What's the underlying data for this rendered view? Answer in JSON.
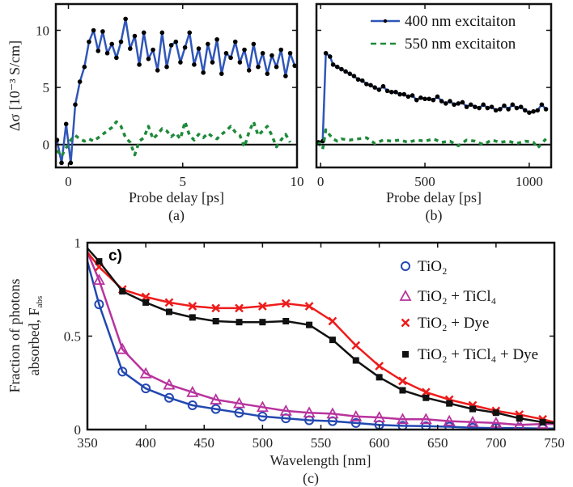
{
  "chart_data": [
    {
      "panel_label": "(a)",
      "type": "line",
      "xlabel": "Probe delay [ps]",
      "ylabel": "Δσ [10⁻³ S/cm]",
      "xlim": [
        -0.55,
        10
      ],
      "ylim": [
        -2.0,
        12.3
      ],
      "xticks": [
        0,
        5,
        10
      ],
      "yticks": [
        0,
        5,
        10
      ],
      "zero_line": true,
      "series": [
        {
          "color": "#2f56b8",
          "marker_color": "#000000",
          "style": "solid-dots",
          "x": [
            -0.5,
            -0.3,
            -0.1,
            0.1,
            0.3,
            0.5,
            0.7,
            0.9,
            1.1,
            1.3,
            1.5,
            1.7,
            1.9,
            2.1,
            2.3,
            2.5,
            2.7,
            2.9,
            3.1,
            3.3,
            3.5,
            3.7,
            3.9,
            4.1,
            4.3,
            4.5,
            4.7,
            4.9,
            5.1,
            5.3,
            5.5,
            5.7,
            5.9,
            6.1,
            6.3,
            6.5,
            6.7,
            6.9,
            7.1,
            7.3,
            7.5,
            7.7,
            7.9,
            8.1,
            8.3,
            8.5,
            8.7,
            8.9,
            9.1,
            9.3,
            9.5,
            9.7,
            9.9
          ],
          "y": [
            0.4,
            -1.6,
            1.8,
            -1.6,
            3.5,
            5.5,
            6.8,
            9.0,
            10.0,
            8.2,
            9.9,
            8.0,
            8.8,
            7.6,
            9.0,
            11.0,
            8.4,
            9.5,
            7.0,
            9.8,
            7.5,
            8.3,
            6.5,
            9.8,
            6.8,
            8.7,
            9.0,
            7.2,
            8.5,
            9.8,
            7.0,
            8.4,
            6.3,
            8.8,
            7.2,
            9.2,
            6.2,
            8.0,
            7.6,
            9.0,
            7.2,
            8.3,
            6.5,
            8.8,
            6.8,
            8.0,
            6.2,
            7.8,
            6.8,
            8.3,
            6.0,
            8.0,
            6.9
          ]
        },
        {
          "color": "#1e8a3a",
          "style": "dashed",
          "x": [
            -0.5,
            -0.3,
            -0.1,
            0.1,
            0.3,
            0.5,
            0.7,
            0.9,
            1.1,
            1.3,
            1.5,
            1.7,
            1.9,
            2.1,
            2.3,
            2.5,
            2.7,
            2.9,
            3.1,
            3.3,
            3.5,
            3.7,
            3.9,
            4.1,
            4.3,
            4.5,
            4.7,
            4.9,
            5.1,
            5.3,
            5.5,
            5.7,
            5.9,
            6.1,
            6.3,
            6.5,
            6.7,
            6.9,
            7.1,
            7.3,
            7.5,
            7.7,
            7.9,
            8.1,
            8.3,
            8.5,
            8.7,
            8.9,
            9.1,
            9.3,
            9.5,
            9.7
          ],
          "y": [
            -0.5,
            -1.0,
            -0.3,
            0.4,
            0.8,
            0.5,
            0.3,
            0.5,
            0.3,
            0.6,
            0.9,
            1.2,
            1.5,
            2.0,
            1.6,
            0.6,
            0.2,
            -0.9,
            0.3,
            0.6,
            1.6,
            0.5,
            0.9,
            1.4,
            1.2,
            0.7,
            1.0,
            0.5,
            2.0,
            0.8,
            0.4,
            0.9,
            0.6,
            1.0,
            0.7,
            0.5,
            0.9,
            1.2,
            1.6,
            1.1,
            0.8,
            -0.2,
            1.1,
            2.0,
            0.8,
            1.2,
            1.6,
            0.8,
            -0.2,
            0.4,
            0.9,
            0.2
          ]
        }
      ]
    },
    {
      "panel_label": "(b)",
      "type": "line",
      "xlabel": "Probe delay [ps]",
      "xlim": [
        -20,
        1105
      ],
      "ylim": [
        -2.0,
        12.3
      ],
      "xticks": [
        0,
        500,
        1000
      ],
      "yticks": [
        0,
        5,
        10
      ],
      "zero_line": true,
      "legend": {
        "position": "top-right",
        "entries": [
          "400 nm excitaiton",
          "550 nm excitaiton"
        ]
      },
      "series": [
        {
          "name": "400 nm excitaiton",
          "color": "#2f56b8",
          "marker_color": "#000000",
          "style": "solid-dots",
          "x": [
            -10,
            10,
            25,
            45,
            60,
            80,
            100,
            120,
            140,
            160,
            180,
            200,
            220,
            240,
            260,
            280,
            300,
            320,
            340,
            360,
            380,
            400,
            420,
            440,
            460,
            480,
            500,
            520,
            540,
            560,
            580,
            600,
            620,
            640,
            660,
            680,
            700,
            720,
            740,
            760,
            780,
            800,
            820,
            840,
            860,
            880,
            900,
            920,
            940,
            960,
            980,
            1000,
            1020,
            1040,
            1060,
            1080
          ],
          "y": [
            0.2,
            0.3,
            8.0,
            7.7,
            7.0,
            6.8,
            6.6,
            6.4,
            6.2,
            6.0,
            5.7,
            5.6,
            5.3,
            5.2,
            5.0,
            4.8,
            5.1,
            4.7,
            4.6,
            4.6,
            4.4,
            4.4,
            4.2,
            4.3,
            3.9,
            4.1,
            4.0,
            4.0,
            3.9,
            4.2,
            3.8,
            3.6,
            3.8,
            3.5,
            3.6,
            3.7,
            3.3,
            3.5,
            3.3,
            3.2,
            3.5,
            3.2,
            3.3,
            3.0,
            3.1,
            3.4,
            3.1,
            3.5,
            3.2,
            3.3,
            3.0,
            2.8,
            2.9,
            3.0,
            3.5,
            3.1
          ]
        },
        {
          "name": "550 nm excitaiton",
          "color": "#1e8a3a",
          "style": "dashed",
          "x": [
            -10,
            10,
            25,
            45,
            60,
            80,
            100,
            140,
            180,
            220,
            260,
            300,
            340,
            380,
            420,
            460,
            500,
            540,
            580,
            620,
            660,
            700,
            740,
            780,
            820,
            860,
            900,
            940,
            980,
            1020,
            1040,
            1080
          ],
          "y": [
            0.2,
            -0.4,
            1.3,
            0.8,
            0.5,
            0.3,
            0.5,
            0.4,
            0.5,
            0.6,
            0.1,
            0.4,
            0.3,
            0.4,
            0.2,
            0.4,
            0.3,
            0.5,
            0.2,
            0.3,
            -0.1,
            0.4,
            0.3,
            0.0,
            0.4,
            0.2,
            0.3,
            0.1,
            0.3,
            0.2,
            -0.3,
            0.5
          ]
        }
      ]
    },
    {
      "panel_label": "(c)",
      "inner_label": "c)",
      "type": "line",
      "xlabel": "Wavelength [nm]",
      "ylabel_lines": [
        "Fraction of photons",
        "absorbed, F"
      ],
      "ylabel_subscript": "abs",
      "xlim": [
        350,
        750
      ],
      "ylim": [
        0,
        1
      ],
      "xticks": [
        350,
        400,
        450,
        500,
        550,
        600,
        650,
        700,
        750
      ],
      "yticks": [
        0,
        0.5,
        1
      ],
      "ytick_labels": [
        "0",
        "0.5",
        "1"
      ],
      "legend": {
        "position": "right"
      },
      "series": [
        {
          "name": "TiO₂",
          "color": "#2348b0",
          "marker": "circle",
          "line_x": [
            350,
            360,
            380,
            400,
            420,
            440,
            460,
            480,
            500,
            520,
            540,
            560,
            580,
            600,
            620,
            640,
            660,
            680,
            700,
            720,
            740,
            750
          ],
          "line_y": [
            0.9,
            0.67,
            0.31,
            0.22,
            0.17,
            0.13,
            0.11,
            0.09,
            0.07,
            0.06,
            0.05,
            0.045,
            0.035,
            0.025,
            0.02,
            0.018,
            0.015,
            0.01,
            0.008,
            0.008,
            0.005,
            0.005
          ],
          "marker_x": [
            360,
            380,
            400,
            420,
            440,
            460,
            480,
            500,
            520,
            540,
            560,
            580,
            600,
            620,
            640,
            660,
            680,
            700,
            720,
            740
          ],
          "marker_y": [
            0.67,
            0.31,
            0.22,
            0.17,
            0.13,
            0.11,
            0.09,
            0.07,
            0.06,
            0.05,
            0.045,
            0.035,
            0.025,
            0.02,
            0.018,
            0.015,
            0.01,
            0.008,
            0.008,
            0.005
          ]
        },
        {
          "name": "TiO₂ + TiCl₄",
          "color": "#b8339e",
          "marker": "triangle",
          "line_x": [
            350,
            360,
            380,
            400,
            420,
            440,
            460,
            480,
            500,
            520,
            540,
            560,
            580,
            600,
            620,
            640,
            660,
            680,
            700,
            720,
            740,
            750
          ],
          "line_y": [
            0.95,
            0.8,
            0.43,
            0.3,
            0.24,
            0.2,
            0.16,
            0.14,
            0.12,
            0.1,
            0.09,
            0.085,
            0.07,
            0.065,
            0.055,
            0.055,
            0.045,
            0.04,
            0.035,
            0.025,
            0.03,
            0.03
          ],
          "marker_x": [
            360,
            380,
            400,
            420,
            440,
            460,
            480,
            500,
            520,
            540,
            560,
            580,
            600,
            620,
            640,
            660,
            680,
            700,
            720,
            740
          ],
          "marker_y": [
            0.8,
            0.43,
            0.3,
            0.24,
            0.2,
            0.16,
            0.14,
            0.12,
            0.1,
            0.09,
            0.085,
            0.07,
            0.065,
            0.055,
            0.055,
            0.045,
            0.04,
            0.035,
            0.025,
            0.03
          ]
        },
        {
          "name": "TiO₂ + Dye",
          "color": "#ee1c1c",
          "marker": "x",
          "line_x": [
            350,
            360,
            380,
            400,
            420,
            440,
            460,
            480,
            500,
            520,
            540,
            560,
            580,
            600,
            620,
            640,
            660,
            680,
            700,
            720,
            740,
            750
          ],
          "line_y": [
            0.95,
            0.87,
            0.75,
            0.71,
            0.68,
            0.66,
            0.65,
            0.65,
            0.66,
            0.675,
            0.66,
            0.58,
            0.45,
            0.34,
            0.26,
            0.2,
            0.16,
            0.13,
            0.1,
            0.08,
            0.055,
            0.04
          ],
          "marker_x": [
            360,
            380,
            400,
            420,
            440,
            460,
            480,
            500,
            520,
            540,
            560,
            580,
            600,
            620,
            640,
            660,
            680,
            700,
            720,
            740
          ],
          "marker_y": [
            0.87,
            0.75,
            0.71,
            0.68,
            0.66,
            0.65,
            0.65,
            0.66,
            0.675,
            0.66,
            0.58,
            0.45,
            0.34,
            0.26,
            0.2,
            0.16,
            0.13,
            0.1,
            0.08,
            0.055
          ]
        },
        {
          "name": "TiO₂ + TiCl₄ + Dye",
          "color": "#111111",
          "marker": "square",
          "line_x": [
            350,
            360,
            380,
            400,
            420,
            440,
            460,
            480,
            500,
            520,
            540,
            560,
            580,
            600,
            620,
            640,
            660,
            680,
            700,
            720,
            740,
            750
          ],
          "line_y": [
            0.97,
            0.9,
            0.74,
            0.68,
            0.63,
            0.6,
            0.58,
            0.575,
            0.575,
            0.58,
            0.56,
            0.48,
            0.37,
            0.28,
            0.21,
            0.17,
            0.14,
            0.11,
            0.09,
            0.06,
            0.04,
            0.035
          ],
          "marker_x": [
            360,
            380,
            400,
            420,
            440,
            460,
            480,
            500,
            520,
            540,
            560,
            580,
            600,
            620,
            640,
            660,
            680,
            700,
            720,
            740
          ],
          "marker_y": [
            0.9,
            0.74,
            0.68,
            0.63,
            0.6,
            0.58,
            0.575,
            0.575,
            0.58,
            0.56,
            0.48,
            0.37,
            0.28,
            0.21,
            0.17,
            0.14,
            0.11,
            0.09,
            0.06,
            0.04
          ]
        }
      ]
    }
  ]
}
